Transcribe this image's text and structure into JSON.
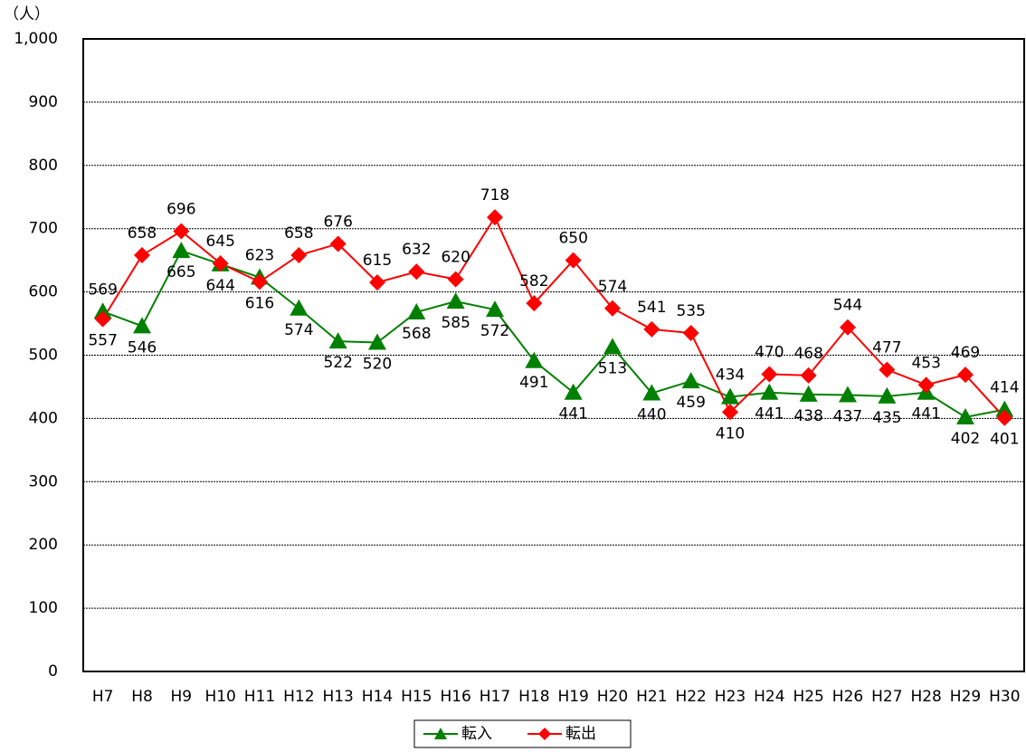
{
  "chart_data": {
    "type": "line",
    "y_unit": "（人）",
    "categories": [
      "H7",
      "H8",
      "H9",
      "H10",
      "H11",
      "H12",
      "H13",
      "H14",
      "H15",
      "H16",
      "H17",
      "H18",
      "H19",
      "H20",
      "H21",
      "H22",
      "H23",
      "H24",
      "H25",
      "H26",
      "H27",
      "H28",
      "H29",
      "H30"
    ],
    "series": [
      {
        "name": "転入",
        "color": "#008000",
        "marker": "triangle",
        "values": [
          569,
          546,
          665,
          644,
          623,
          574,
          522,
          520,
          568,
          585,
          572,
          491,
          441,
          513,
          440,
          459,
          434,
          441,
          438,
          437,
          435,
          441,
          402,
          414
        ]
      },
      {
        "name": "転出",
        "color": "#ff0000",
        "marker": "diamond",
        "values": [
          557,
          658,
          696,
          645,
          616,
          658,
          676,
          615,
          632,
          620,
          718,
          582,
          650,
          574,
          541,
          535,
          410,
          470,
          468,
          544,
          477,
          453,
          469,
          401
        ]
      }
    ],
    "ylim": [
      0,
      1000
    ],
    "yticks": [
      0,
      100,
      200,
      300,
      400,
      500,
      600,
      700,
      800,
      900,
      {
        "value": 1000,
        "label": "1,000"
      }
    ],
    "grid": true,
    "data_labels": true,
    "legend": "bottom"
  }
}
